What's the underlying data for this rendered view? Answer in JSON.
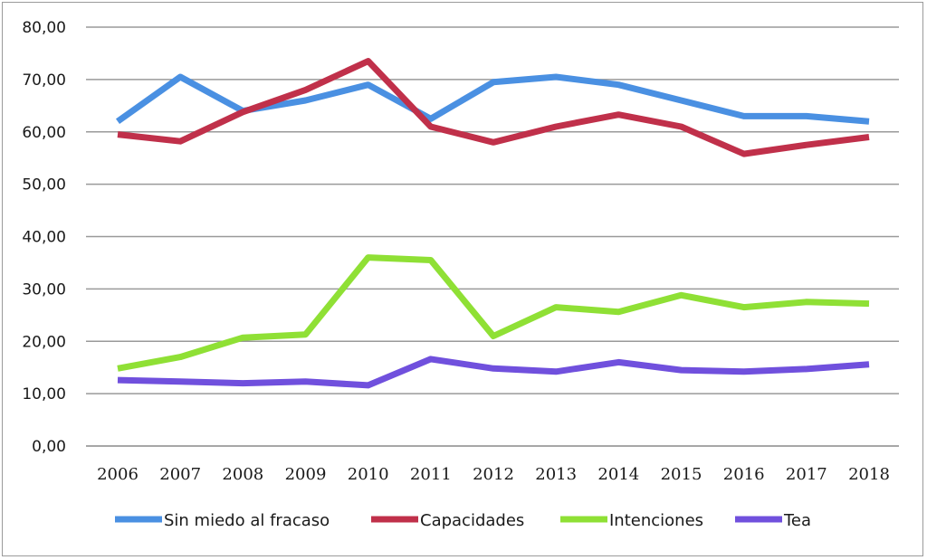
{
  "chart_data": {
    "type": "line",
    "title": "",
    "xlabel": "",
    "ylabel": "",
    "ylim": [
      0,
      80
    ],
    "yticks": [
      "0,00",
      "10,00",
      "20,00",
      "30,00",
      "40,00",
      "50,00",
      "60,00",
      "70,00",
      "80,00"
    ],
    "grid": true,
    "legend_position": "bottom",
    "categories": [
      "2006",
      "2007",
      "2008",
      "2009",
      "2010",
      "2011",
      "2012",
      "2013",
      "2014",
      "2015",
      "2016",
      "2017",
      "2018"
    ],
    "series": [
      {
        "name": "Sin miedo al fracaso",
        "color": "#4a90e2",
        "values": [
          62.0,
          70.5,
          64.0,
          66.0,
          69.0,
          62.5,
          69.5,
          70.5,
          69.0,
          66.0,
          63.0,
          63.0,
          62.0
        ]
      },
      {
        "name": "Capacidades",
        "color": "#c0304a",
        "values": [
          59.5,
          58.2,
          63.8,
          68.0,
          73.5,
          61.0,
          58.0,
          61.0,
          63.3,
          61.0,
          55.8,
          57.5,
          59.0
        ]
      },
      {
        "name": "Intenciones",
        "color": "#8fe035",
        "values": [
          14.8,
          17.0,
          20.7,
          21.3,
          36.0,
          35.5,
          21.0,
          26.5,
          25.6,
          28.8,
          26.5,
          27.5,
          27.2
        ]
      },
      {
        "name": "Tea",
        "color": "#7050dd",
        "values": [
          12.6,
          12.3,
          12.0,
          12.3,
          11.6,
          16.6,
          14.8,
          14.2,
          16.0,
          14.5,
          14.2,
          14.7,
          15.6
        ]
      }
    ]
  }
}
